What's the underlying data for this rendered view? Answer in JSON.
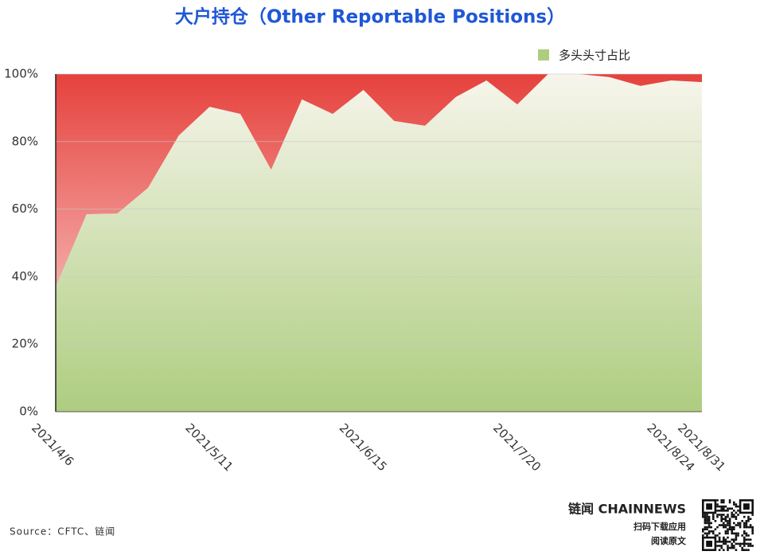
{
  "chart_data": {
    "type": "area",
    "title": "大户持仓（Other Reportable Positions）",
    "categories": [
      "2021/4/6",
      null,
      null,
      null,
      null,
      "2021/5/11",
      null,
      null,
      null,
      null,
      "2021/6/15",
      null,
      null,
      null,
      null,
      "2021/7/20",
      null,
      null,
      null,
      null,
      "2021/8/24",
      "2021/8/31"
    ],
    "series": [
      {
        "name": "多头头寸占比",
        "color": "#aecd80",
        "values": [
          37,
          58.5,
          58.7,
          66.3,
          81.8,
          90.3,
          88.2,
          71.7,
          92.5,
          88.2,
          95.3,
          86.1,
          84.7,
          93.2,
          98.1,
          91.0,
          100,
          100,
          99.1,
          96.5,
          98.1,
          97.6
        ]
      }
    ],
    "ylim": [
      0,
      100
    ],
    "yticks": [
      {
        "value": 0,
        "label": "0%"
      },
      {
        "value": 20,
        "label": "20%"
      },
      {
        "value": 40,
        "label": "40%"
      },
      {
        "value": 60,
        "label": "60%"
      },
      {
        "value": 80,
        "label": "80%"
      },
      {
        "value": 100,
        "label": "100%"
      }
    ],
    "grid": true,
    "legend": "top-right",
    "annotations": [
      "Source：CFTC、链闻",
      "链闻 CHAINNEWS",
      "扫码下载应用",
      "阅读原文"
    ]
  }
}
